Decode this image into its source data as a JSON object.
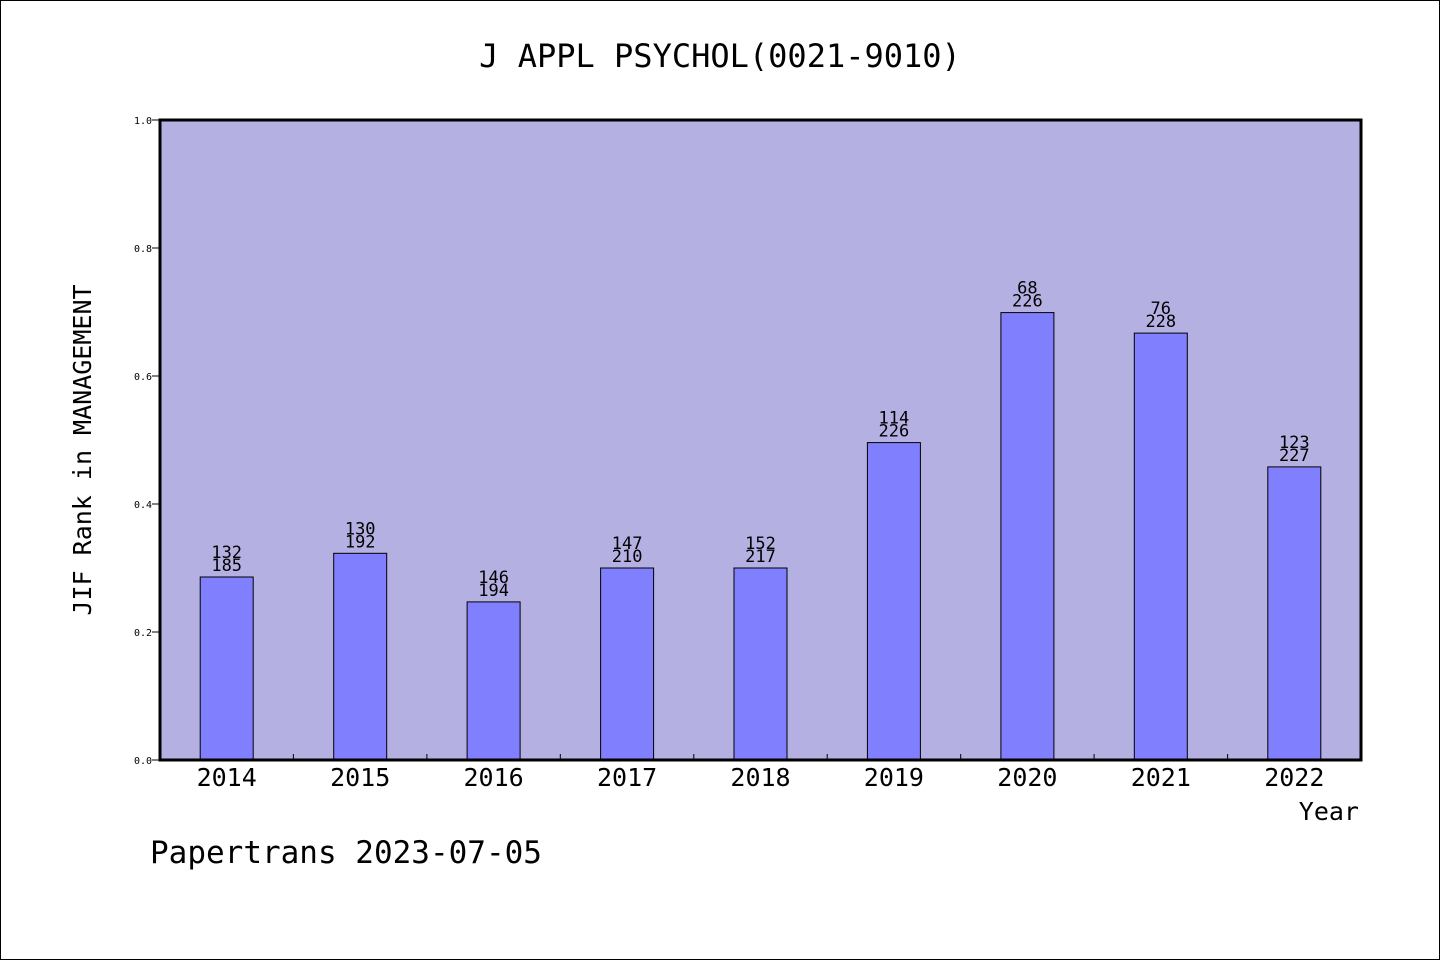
{
  "colors": {
    "plot_background": "#b5b0e2",
    "bar_fill": "#8080ff",
    "axis": "#000000"
  },
  "footer": {
    "credit": "Papertrans 2023-07-05"
  },
  "chart_data": {
    "type": "bar",
    "title": "J APPL PSYCHOL(0021-9010)",
    "xlabel": "Year",
    "ylabel": "JIF Rank in MANAGEMENT",
    "ylim": [
      0,
      1
    ],
    "yticks": [
      0.0,
      0.2,
      0.4,
      0.6,
      0.8,
      1.0
    ],
    "grid": false,
    "categories": [
      "2014",
      "2015",
      "2016",
      "2017",
      "2018",
      "2019",
      "2020",
      "2021",
      "2022"
    ],
    "values": [
      0.286,
      0.323,
      0.247,
      0.3,
      0.3,
      0.496,
      0.699,
      0.667,
      0.458
    ],
    "bar_labels": [
      [
        "132",
        "185"
      ],
      [
        "130",
        "192"
      ],
      [
        "146",
        "194"
      ],
      [
        "147",
        "210"
      ],
      [
        "152",
        "217"
      ],
      [
        "114",
        "226"
      ],
      [
        "68",
        "226"
      ],
      [
        "76",
        "228"
      ],
      [
        "123",
        "227"
      ]
    ]
  }
}
